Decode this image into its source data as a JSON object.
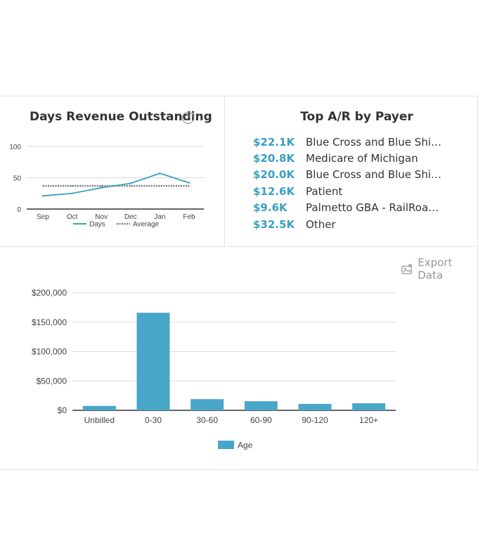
{
  "days_revenue": {
    "title": "Days Revenue Outstanding",
    "help": "?"
  },
  "top_ar": {
    "title": "Top A/R by Payer",
    "payers": [
      {
        "amount": "$22.1K",
        "name": "Blue Cross and Blue Shield …"
      },
      {
        "amount": "$20.8K",
        "name": "Medicare of Michigan"
      },
      {
        "amount": "$20.0K",
        "name": "Blue Cross and Blue Shield …"
      },
      {
        "amount": "$12.6K",
        "name": "Patient"
      },
      {
        "amount": "$9.6K",
        "name": "Palmetto GBA - RailRoad M…"
      },
      {
        "amount": "$32.5K",
        "name": "Other"
      }
    ]
  },
  "export": {
    "label": "Export Data",
    "icon": "export-image-icon"
  },
  "colors": {
    "accent": "#3a9fc4",
    "bar": "#48a6c9",
    "average": "#7a7a7a"
  },
  "chart_data": [
    {
      "type": "line",
      "categories": [
        "Sep",
        "Oct",
        "Nov",
        "Dec",
        "Jan",
        "Feb"
      ],
      "series": [
        {
          "name": "Days",
          "values": [
            21,
            25,
            34,
            41,
            57,
            42
          ]
        },
        {
          "name": "Average",
          "values": [
            37,
            37,
            37,
            37,
            37,
            37
          ]
        }
      ],
      "yticks": [
        "0",
        "50",
        "100"
      ],
      "ylim": [
        0,
        100
      ],
      "grid": true,
      "legend": "bottom"
    },
    {
      "type": "bar",
      "categories": [
        "Unbilled",
        "0-30",
        "30-60",
        "60-90",
        "90-120",
        "120+"
      ],
      "series": [
        {
          "name": "Age",
          "values": [
            7500,
            166000,
            19000,
            15500,
            11000,
            12000
          ]
        }
      ],
      "yticks": [
        "$0",
        "$50,000",
        "$100,000",
        "$150,000",
        "$200,000"
      ],
      "ylim": [
        0,
        200000
      ],
      "grid": true,
      "legend": "bottom"
    }
  ]
}
